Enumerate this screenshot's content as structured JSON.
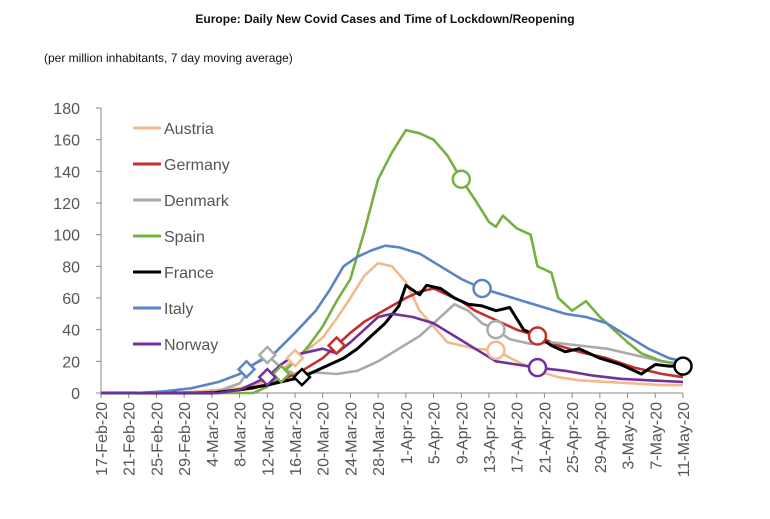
{
  "chart_data": {
    "type": "line",
    "title": "Europe: Daily New Covid Cases and Time of Lockdown/Reopening",
    "subtitle": "(per million inhabitants, 7 day moving average)",
    "xlabel": "",
    "ylabel": "",
    "ylim": [
      0,
      180
    ],
    "yticks": [
      "0",
      "20",
      "40",
      "60",
      "80",
      "100",
      "120",
      "140",
      "160",
      "180"
    ],
    "grid": false,
    "legend": "top-left",
    "x_start": "2020-02-17",
    "x_end": "2020-05-11",
    "x_tick_labels": [
      "17-Feb-20",
      "21-Feb-20",
      "25-Feb-20",
      "29-Feb-20",
      "4-Mar-20",
      "8-Mar-20",
      "12-Mar-20",
      "16-Mar-20",
      "20-Mar-20",
      "24-Mar-20",
      "28-Mar-20",
      "1-Apr-20",
      "5-Apr-20",
      "9-Apr-20",
      "13-Apr-20",
      "17-Apr-20",
      "21-Apr-20",
      "25-Apr-20",
      "29-Apr-20",
      "3-May-20",
      "7-May-20",
      "11-May-20"
    ],
    "marker_legend": "diamond = lockdown, circle = reopening",
    "series": [
      {
        "name": "Austria",
        "color": "#f2b98a",
        "points": [
          [
            "2020-02-17",
            0
          ],
          [
            "2020-02-28",
            0
          ],
          [
            "2020-03-05",
            2
          ],
          [
            "2020-03-08",
            3
          ],
          [
            "2020-03-11",
            6
          ],
          [
            "2020-03-14",
            14
          ],
          [
            "2020-03-16",
            22
          ],
          [
            "2020-03-18",
            28
          ],
          [
            "2020-03-20",
            35
          ],
          [
            "2020-03-22",
            47
          ],
          [
            "2020-03-24",
            60
          ],
          [
            "2020-03-26",
            74
          ],
          [
            "2020-03-28",
            82
          ],
          [
            "2020-03-30",
            80
          ],
          [
            "2020-04-01",
            70
          ],
          [
            "2020-04-03",
            52
          ],
          [
            "2020-04-05",
            42
          ],
          [
            "2020-04-07",
            32
          ],
          [
            "2020-04-09",
            30
          ],
          [
            "2020-04-11",
            28
          ],
          [
            "2020-04-14",
            27
          ],
          [
            "2020-04-17",
            20
          ],
          [
            "2020-04-20",
            14
          ],
          [
            "2020-04-23",
            10
          ],
          [
            "2020-04-26",
            8
          ],
          [
            "2020-04-30",
            7
          ],
          [
            "2020-05-04",
            6
          ],
          [
            "2020-05-08",
            5
          ],
          [
            "2020-05-11",
            5
          ]
        ],
        "lockdown": "2020-03-16",
        "reopening": "2020-04-14"
      },
      {
        "name": "Germany",
        "color": "#c0312b",
        "points": [
          [
            "2020-02-17",
            0
          ],
          [
            "2020-03-01",
            0
          ],
          [
            "2020-03-06",
            1
          ],
          [
            "2020-03-10",
            3
          ],
          [
            "2020-03-14",
            8
          ],
          [
            "2020-03-17",
            14
          ],
          [
            "2020-03-20",
            22
          ],
          [
            "2020-03-22",
            30
          ],
          [
            "2020-03-24",
            38
          ],
          [
            "2020-03-26",
            45
          ],
          [
            "2020-03-28",
            50
          ],
          [
            "2020-03-30",
            55
          ],
          [
            "2020-04-01",
            60
          ],
          [
            "2020-04-03",
            64
          ],
          [
            "2020-04-05",
            66
          ],
          [
            "2020-04-07",
            62
          ],
          [
            "2020-04-09",
            58
          ],
          [
            "2020-04-11",
            52
          ],
          [
            "2020-04-13",
            48
          ],
          [
            "2020-04-15",
            44
          ],
          [
            "2020-04-17",
            40
          ],
          [
            "2020-04-20",
            36
          ],
          [
            "2020-04-23",
            30
          ],
          [
            "2020-04-26",
            26
          ],
          [
            "2020-04-30",
            22
          ],
          [
            "2020-05-04",
            16
          ],
          [
            "2020-05-08",
            12
          ],
          [
            "2020-05-11",
            10
          ]
        ],
        "lockdown": "2020-03-22",
        "reopening": "2020-04-20"
      },
      {
        "name": "Denmark",
        "color": "#aaaaaa",
        "points": [
          [
            "2020-02-17",
            0
          ],
          [
            "2020-03-04",
            0
          ],
          [
            "2020-03-08",
            6
          ],
          [
            "2020-03-10",
            18
          ],
          [
            "2020-03-12",
            24
          ],
          [
            "2020-03-14",
            16
          ],
          [
            "2020-03-16",
            12
          ],
          [
            "2020-03-19",
            13
          ],
          [
            "2020-03-22",
            12
          ],
          [
            "2020-03-25",
            14
          ],
          [
            "2020-03-28",
            20
          ],
          [
            "2020-03-31",
            28
          ],
          [
            "2020-04-03",
            36
          ],
          [
            "2020-04-06",
            48
          ],
          [
            "2020-04-08",
            56
          ],
          [
            "2020-04-10",
            52
          ],
          [
            "2020-04-12",
            44
          ],
          [
            "2020-04-14",
            40
          ],
          [
            "2020-04-16",
            34
          ],
          [
            "2020-04-19",
            31
          ],
          [
            "2020-04-22",
            32
          ],
          [
            "2020-04-26",
            30
          ],
          [
            "2020-04-30",
            28
          ],
          [
            "2020-05-04",
            24
          ],
          [
            "2020-05-08",
            20
          ],
          [
            "2020-05-11",
            18
          ]
        ],
        "lockdown": "2020-03-12",
        "reopening": "2020-04-14"
      },
      {
        "name": "Spain",
        "color": "#76b041",
        "points": [
          [
            "2020-02-17",
            0
          ],
          [
            "2020-03-10",
            0
          ],
          [
            "2020-03-12",
            4
          ],
          [
            "2020-03-14",
            12
          ],
          [
            "2020-03-16",
            20
          ],
          [
            "2020-03-18",
            30
          ],
          [
            "2020-03-20",
            42
          ],
          [
            "2020-03-22",
            58
          ],
          [
            "2020-03-24",
            72
          ],
          [
            "2020-03-26",
            102
          ],
          [
            "2020-03-28",
            135
          ],
          [
            "2020-03-30",
            152
          ],
          [
            "2020-04-01",
            166
          ],
          [
            "2020-04-03",
            164
          ],
          [
            "2020-04-05",
            160
          ],
          [
            "2020-04-07",
            150
          ],
          [
            "2020-04-09",
            135
          ],
          [
            "2020-04-11",
            122
          ],
          [
            "2020-04-13",
            108
          ],
          [
            "2020-04-14",
            105
          ],
          [
            "2020-04-15",
            112
          ],
          [
            "2020-04-17",
            104
          ],
          [
            "2020-04-19",
            100
          ],
          [
            "2020-04-20",
            80
          ],
          [
            "2020-04-22",
            76
          ],
          [
            "2020-04-23",
            60
          ],
          [
            "2020-04-25",
            52
          ],
          [
            "2020-04-27",
            58
          ],
          [
            "2020-04-29",
            48
          ],
          [
            "2020-05-01",
            40
          ],
          [
            "2020-05-03",
            32
          ],
          [
            "2020-05-05",
            25
          ],
          [
            "2020-05-08",
            20
          ],
          [
            "2020-05-11",
            18
          ]
        ],
        "lockdown": "2020-03-14",
        "reopening": "2020-04-09"
      },
      {
        "name": "France",
        "color": "#000000",
        "points": [
          [
            "2020-02-17",
            0
          ],
          [
            "2020-03-04",
            0
          ],
          [
            "2020-03-08",
            2
          ],
          [
            "2020-03-12",
            5
          ],
          [
            "2020-03-15",
            8
          ],
          [
            "2020-03-17",
            10
          ],
          [
            "2020-03-20",
            16
          ],
          [
            "2020-03-23",
            22
          ],
          [
            "2020-03-25",
            28
          ],
          [
            "2020-03-27",
            36
          ],
          [
            "2020-03-29",
            44
          ],
          [
            "2020-03-31",
            55
          ],
          [
            "2020-04-01",
            68
          ],
          [
            "2020-04-03",
            62
          ],
          [
            "2020-04-04",
            68
          ],
          [
            "2020-04-06",
            66
          ],
          [
            "2020-04-08",
            60
          ],
          [
            "2020-04-10",
            56
          ],
          [
            "2020-04-12",
            55
          ],
          [
            "2020-04-14",
            52
          ],
          [
            "2020-04-16",
            54
          ],
          [
            "2020-04-18",
            40
          ],
          [
            "2020-04-20",
            36
          ],
          [
            "2020-04-22",
            30
          ],
          [
            "2020-04-24",
            26
          ],
          [
            "2020-04-26",
            28
          ],
          [
            "2020-04-29",
            22
          ],
          [
            "2020-05-02",
            18
          ],
          [
            "2020-05-05",
            12
          ],
          [
            "2020-05-07",
            18
          ],
          [
            "2020-05-09",
            17
          ],
          [
            "2020-05-11",
            17
          ]
        ],
        "lockdown": "2020-03-17",
        "reopening": "2020-05-11"
      },
      {
        "name": "Italy",
        "color": "#5b84c4",
        "points": [
          [
            "2020-02-17",
            0
          ],
          [
            "2020-02-22",
            0
          ],
          [
            "2020-02-26",
            1
          ],
          [
            "2020-03-01",
            3
          ],
          [
            "2020-03-05",
            7
          ],
          [
            "2020-03-08",
            12
          ],
          [
            "2020-03-10",
            18
          ],
          [
            "2020-03-13",
            25
          ],
          [
            "2020-03-16",
            38
          ],
          [
            "2020-03-19",
            52
          ],
          [
            "2020-03-21",
            65
          ],
          [
            "2020-03-23",
            80
          ],
          [
            "2020-03-25",
            86
          ],
          [
            "2020-03-27",
            90
          ],
          [
            "2020-03-29",
            93
          ],
          [
            "2020-03-31",
            92
          ],
          [
            "2020-04-03",
            88
          ],
          [
            "2020-04-06",
            80
          ],
          [
            "2020-04-09",
            72
          ],
          [
            "2020-04-12",
            66
          ],
          [
            "2020-04-15",
            62
          ],
          [
            "2020-04-18",
            58
          ],
          [
            "2020-04-21",
            54
          ],
          [
            "2020-04-24",
            50
          ],
          [
            "2020-04-27",
            48
          ],
          [
            "2020-04-30",
            44
          ],
          [
            "2020-05-03",
            36
          ],
          [
            "2020-05-06",
            28
          ],
          [
            "2020-05-09",
            22
          ],
          [
            "2020-05-11",
            20
          ]
        ],
        "lockdown": "2020-03-09",
        "reopening": "2020-04-12"
      },
      {
        "name": "Norway",
        "color": "#7030a0",
        "points": [
          [
            "2020-02-17",
            0
          ],
          [
            "2020-03-05",
            0
          ],
          [
            "2020-03-08",
            2
          ],
          [
            "2020-03-10",
            6
          ],
          [
            "2020-03-12",
            10
          ],
          [
            "2020-03-14",
            18
          ],
          [
            "2020-03-16",
            24
          ],
          [
            "2020-03-18",
            26
          ],
          [
            "2020-03-20",
            28
          ],
          [
            "2020-03-22",
            25
          ],
          [
            "2020-03-24",
            32
          ],
          [
            "2020-03-26",
            40
          ],
          [
            "2020-03-28",
            48
          ],
          [
            "2020-03-30",
            50
          ],
          [
            "2020-04-02",
            48
          ],
          [
            "2020-04-05",
            44
          ],
          [
            "2020-04-08",
            36
          ],
          [
            "2020-04-11",
            28
          ],
          [
            "2020-04-14",
            20
          ],
          [
            "2020-04-17",
            18
          ],
          [
            "2020-04-20",
            16
          ],
          [
            "2020-04-24",
            14
          ],
          [
            "2020-04-28",
            11
          ],
          [
            "2020-05-02",
            9
          ],
          [
            "2020-05-06",
            8
          ],
          [
            "2020-05-11",
            7
          ]
        ],
        "lockdown": "2020-03-12",
        "reopening": "2020-04-20"
      }
    ]
  }
}
